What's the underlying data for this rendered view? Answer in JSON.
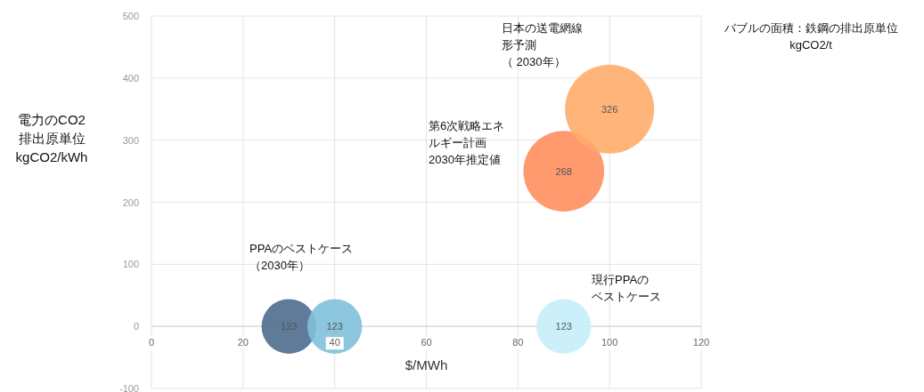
{
  "chart_data": {
    "type": "bubble",
    "xlabel": "$/MWh",
    "ylabel": "電力のCO2\n排出原単位\nkgCO2/kWh",
    "x": [
      30,
      40,
      90,
      100,
      90
    ],
    "values": [
      0,
      0,
      250,
      350,
      0
    ],
    "sizes": [
      123,
      123,
      268,
      326,
      123
    ],
    "value_labels": [
      "123",
      "123",
      "268",
      "326",
      "123"
    ],
    "colors": [
      "#4f6d8f",
      "#80c0dc",
      "#ff8f5e",
      "#ffac6b",
      "#c6eef9"
    ],
    "xlim": [
      0,
      120
    ],
    "xticks": [
      0,
      20,
      40,
      60,
      80,
      100,
      120
    ],
    "ylim": [
      -100,
      500
    ],
    "yticks": [
      -100,
      0,
      100,
      200,
      300,
      400,
      500
    ],
    "grid": true,
    "annotations": [
      "日本の送電網線形予測（ 2030年）",
      "第6次戦略エネルギー計画2030年推定値",
      "PPAのベストケース（2030年）",
      "現行PPAのベストケース",
      "バブルの面積：鉄鋼の排出原単位\nkgCO2/t"
    ]
  }
}
